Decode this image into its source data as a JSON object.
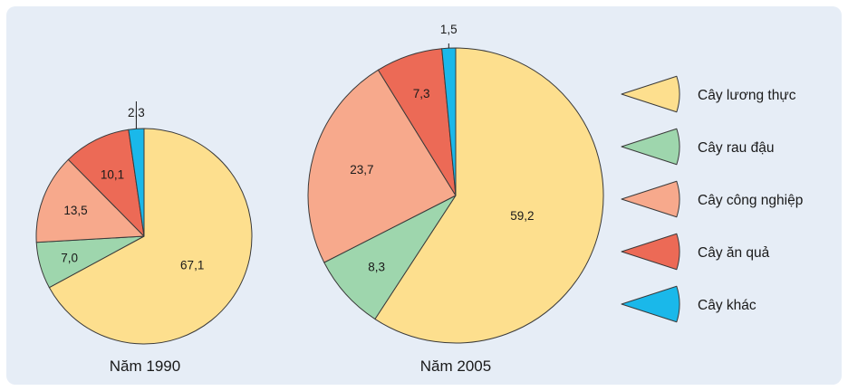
{
  "colors": {
    "background": "#e6edf6",
    "stroke": "#3a3a3a",
    "slices": [
      "#fddf8e",
      "#9ed6ad",
      "#f7a98c",
      "#ec6a56",
      "#1ab8ea"
    ]
  },
  "legend": {
    "items": [
      {
        "label": "Cây lương thực",
        "color": "#fddf8e"
      },
      {
        "label": "Cây rau đậu",
        "color": "#9ed6ad"
      },
      {
        "label": "Cây công nghiệp",
        "color": "#f7a98c"
      },
      {
        "label": "Cây ăn quả",
        "color": "#ec6a56"
      },
      {
        "label": "Cây khác",
        "color": "#1ab8ea"
      }
    ]
  },
  "chart_data": [
    {
      "type": "pie",
      "title": "Năm 1990",
      "categories": [
        "Cây lương thực",
        "Cây rau đậu",
        "Cây công nghiệp",
        "Cây ăn quả",
        "Cây khác"
      ],
      "values": [
        67.1,
        7.0,
        13.5,
        10.1,
        2.3
      ],
      "value_labels": [
        "67,1",
        "7,0",
        "13,5",
        "10,1",
        "2,3"
      ],
      "start": "12 o'clock",
      "direction": "clockwise"
    },
    {
      "type": "pie",
      "title": "Năm 2005",
      "categories": [
        "Cây lương thực",
        "Cây rau đậu",
        "Cây công nghiệp",
        "Cây ăn quả",
        "Cây khác"
      ],
      "values": [
        59.2,
        8.3,
        23.7,
        7.3,
        1.5
      ],
      "value_labels": [
        "59,2",
        "8,3",
        "23,7",
        "7,3",
        "1,5"
      ],
      "start": "12 o'clock",
      "direction": "clockwise"
    }
  ]
}
